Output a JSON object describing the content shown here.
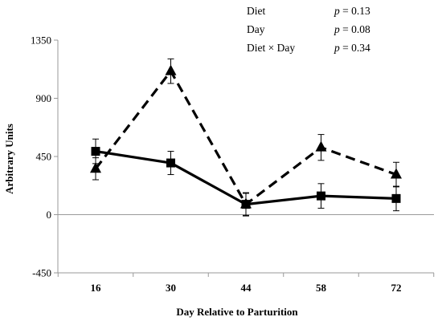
{
  "chart_data": {
    "type": "line",
    "title": "",
    "xlabel": "Day Relative to Parturition",
    "ylabel": "Arbitrary Units",
    "categories": [
      "16",
      "30",
      "44",
      "58",
      "72"
    ],
    "ylim": [
      -450,
      1350
    ],
    "yticks": [
      -450,
      0,
      450,
      900,
      1350
    ],
    "ytick_labels": [
      "-450",
      "0",
      "450",
      "900",
      "1350"
    ],
    "grid": false,
    "series": [
      {
        "marker": "square",
        "line_style": "solid",
        "color": "#000000",
        "values": [
          490,
          400,
          80,
          145,
          125
        ],
        "error": [
          95,
          90,
          85,
          95,
          95
        ]
      },
      {
        "marker": "triangle",
        "line_style": "dashed",
        "color": "#000000",
        "values": [
          355,
          1110,
          80,
          520,
          310
        ],
        "error": [
          85,
          95,
          90,
          100,
          95
        ]
      }
    ],
    "annotations": [
      {
        "term": "Diet",
        "p_label": "p",
        "p_value": "= 0.13"
      },
      {
        "term": "Day",
        "p_label": "p",
        "p_value": "= 0.08"
      },
      {
        "term": "Diet × Day",
        "p_label": "p",
        "p_value": "= 0.34"
      }
    ]
  }
}
